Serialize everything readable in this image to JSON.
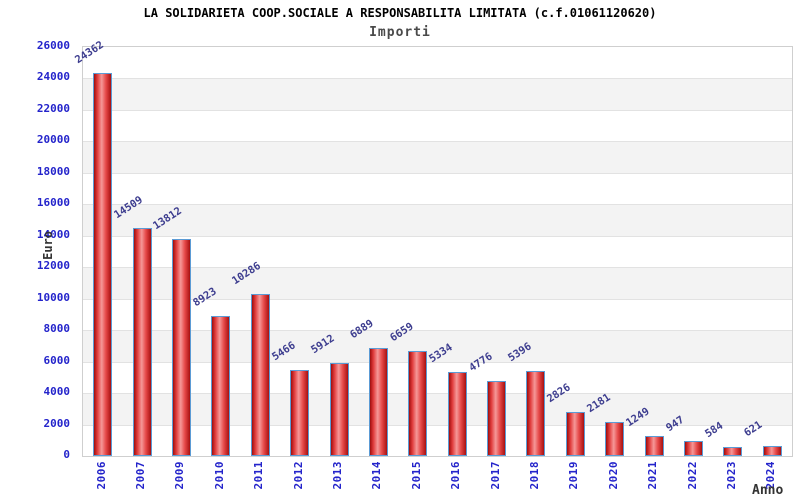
{
  "chart_data": {
    "type": "bar",
    "title": "LA SOLIDARIETA COOP.SOCIALE A RESPONSABILITA LIMITATA (c.f.01061120620)",
    "subtitle": "Importi",
    "xlabel": "Anno",
    "ylabel": "Euro",
    "categories": [
      "2006",
      "2007",
      "2009",
      "2010",
      "2011",
      "2012",
      "2013",
      "2014",
      "2015",
      "2016",
      "2017",
      "2018",
      "2019",
      "2020",
      "2021",
      "2022",
      "2023",
      "2024"
    ],
    "values": [
      24362,
      14509,
      13812,
      8923,
      10286,
      5466,
      5912,
      6889,
      6659,
      5334,
      4776,
      5396,
      2826,
      2181,
      1249,
      947,
      584,
      621
    ],
    "ylim": [
      0,
      26000
    ],
    "ytick_step": 2000,
    "grid": true,
    "legend_position": "none",
    "bar_value_labels_rotated": true,
    "colors": {
      "bar_gradient": [
        "#9e0e0e",
        "#e13c3c",
        "#f59898",
        "#e64848",
        "#a81111"
      ],
      "bar_border": "#5b9bd5",
      "axis_tick_label": "#2424cb",
      "value_label": "#3d3d8f",
      "band_alt": "#f3f3f3",
      "band_main": "#ffffff",
      "gridline": "#e2e2e2",
      "plot_border": "#cfcfcf",
      "title_color": "#000000",
      "subtitle_color": "#4a4a4a",
      "axis_title_color": "#333333",
      "background": "#ffffff"
    }
  }
}
